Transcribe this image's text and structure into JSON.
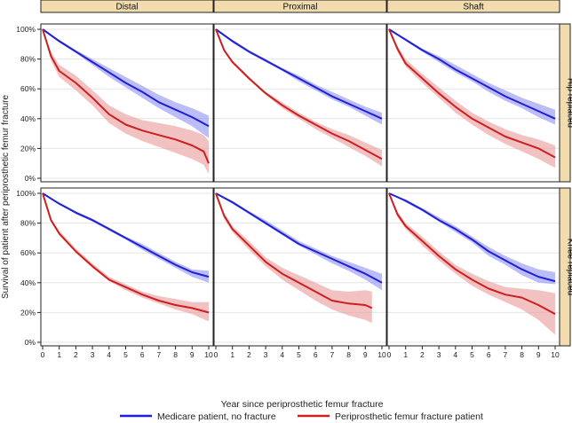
{
  "chart_data": {
    "type": "line",
    "xlabel": "Year since periprosthetic femur fracture",
    "ylabel": "Survival of patient after periprosthetic femur fracture",
    "x_ticks": [
      0,
      1,
      2,
      3,
      4,
      5,
      6,
      7,
      8,
      9,
      10
    ],
    "y_ticks": [
      "0%",
      "20%",
      "40%",
      "60%",
      "80%",
      "100%"
    ],
    "xlim": [
      0,
      10
    ],
    "ylim": [
      0,
      100
    ],
    "columns": [
      "Distal",
      "Proximal",
      "Shaft"
    ],
    "rows": [
      "Hip replaced",
      "Knee replaced"
    ],
    "legend": {
      "placement": "bottom",
      "entries": [
        {
          "label": "Medicare patient, no fracture",
          "color": "#1f1fd6"
        },
        {
          "label": "Periprosthetic femur fracture patient",
          "color": "#cc1f1f"
        }
      ]
    },
    "colors": {
      "medicare_line": "#1f1fd6",
      "medicare_band": "#8f8ff0",
      "fracture_line": "#cc1f1f",
      "fracture_band": "#ea9a9a",
      "strip": "#f2dcae"
    },
    "panels": [
      {
        "column": "Distal",
        "row": "Hip replaced",
        "series": [
          {
            "legend": 0,
            "x": [
              0,
              1,
              2,
              3,
              4,
              5,
              6,
              7,
              8,
              9,
              10
            ],
            "y": [
              100,
              92,
              85,
              78,
              71,
              64,
              58,
              51,
              46,
              41,
              35
            ],
            "lower": [
              100,
              91,
              84,
              76,
              68,
              61,
              54,
              47,
              41,
              35,
              27
            ],
            "upper": [
              100,
              93,
              86,
              80,
              74,
              68,
              62,
              56,
              51,
              47,
              42
            ]
          },
          {
            "legend": 1,
            "x": [
              0,
              0.5,
              1,
              2,
              3,
              4,
              5,
              6,
              7,
              8,
              9,
              9.7,
              10
            ],
            "y": [
              100,
              82,
              72,
              64,
              54,
              43,
              36,
              32,
              29,
              26,
              22,
              18,
              10
            ],
            "lower": [
              100,
              79,
              68,
              59,
              49,
              37,
              30,
              25,
              21,
              17,
              13,
              9,
              3
            ],
            "upper": [
              100,
              85,
              76,
              69,
              59,
              49,
              43,
              39,
              37,
              35,
              32,
              29,
              25
            ]
          }
        ]
      },
      {
        "column": "Proximal",
        "row": "Hip replaced",
        "series": [
          {
            "legend": 0,
            "x": [
              0,
              1,
              2,
              3,
              4,
              5,
              6,
              7,
              8,
              9,
              10
            ],
            "y": [
              100,
              92,
              85,
              79,
              73,
              67,
              61,
              55,
              50,
              45,
              40
            ],
            "lower": [
              100,
              91,
              84,
              78,
              72,
              65,
              59,
              53,
              48,
              42,
              36
            ],
            "upper": [
              100,
              93,
              86,
              80,
              74,
              69,
              63,
              58,
              53,
              48,
              44
            ]
          },
          {
            "legend": 1,
            "x": [
              0,
              0.5,
              1,
              2,
              3,
              4,
              5,
              6,
              7,
              8,
              9,
              10
            ],
            "y": [
              100,
              86,
              78,
              67,
              57,
              49,
              42,
              36,
              30,
              25,
              19,
              13
            ],
            "lower": [
              100,
              85,
              77,
              66,
              56,
              47,
              40,
              33,
              27,
              21,
              15,
              8
            ],
            "upper": [
              100,
              87,
              79,
              68,
              58,
              51,
              44,
              38,
              33,
              29,
              24,
              19
            ]
          }
        ]
      },
      {
        "column": "Shaft",
        "row": "Hip replaced",
        "series": [
          {
            "legend": 0,
            "x": [
              0,
              1,
              2,
              3,
              4,
              5,
              6,
              7,
              8,
              9,
              10
            ],
            "y": [
              100,
              93,
              86,
              80,
              73,
              67,
              61,
              55,
              50,
              45,
              40
            ],
            "lower": [
              100,
              92,
              85,
              78,
              71,
              65,
              58,
              52,
              47,
              41,
              36
            ],
            "upper": [
              100,
              94,
              87,
              82,
              76,
              70,
              64,
              59,
              54,
              50,
              46
            ]
          },
          {
            "legend": 1,
            "x": [
              0,
              0.5,
              1,
              2,
              3,
              4,
              5,
              6,
              7,
              8,
              9,
              10
            ],
            "y": [
              100,
              87,
              77,
              67,
              57,
              48,
              40,
              34,
              28,
              24,
              20,
              14
            ],
            "lower": [
              100,
              85,
              75,
              64,
              54,
              44,
              36,
              29,
              23,
              18,
              13,
              7
            ],
            "upper": [
              100,
              89,
              80,
              70,
              61,
              52,
              44,
              38,
              33,
              29,
              26,
              22
            ]
          }
        ]
      },
      {
        "column": "Distal",
        "row": "Knee replaced",
        "series": [
          {
            "legend": 0,
            "x": [
              0,
              1,
              2,
              3,
              4,
              5,
              6,
              7,
              8,
              9,
              10
            ],
            "y": [
              100,
              93,
              87,
              82,
              76,
              70,
              64,
              58,
              52,
              47,
              44
            ],
            "lower": [
              100,
              93,
              86,
              81,
              75,
              69,
              62,
              56,
              50,
              44,
              40
            ],
            "upper": [
              100,
              94,
              88,
              83,
              77,
              71,
              66,
              60,
              54,
              49,
              48
            ]
          },
          {
            "legend": 1,
            "x": [
              0,
              0.5,
              1,
              2,
              3,
              4,
              5,
              6,
              7,
              8,
              9,
              10
            ],
            "y": [
              100,
              82,
              73,
              61,
              51,
              42,
              37,
              32,
              28,
              25,
              23,
              20
            ],
            "lower": [
              100,
              81,
              72,
              60,
              50,
              41,
              35,
              30,
              26,
              22,
              19,
              14
            ],
            "upper": [
              100,
              83,
              75,
              63,
              53,
              44,
              39,
              34,
              31,
              29,
              27,
              27
            ]
          }
        ]
      },
      {
        "column": "Proximal",
        "row": "Knee replaced",
        "series": [
          {
            "legend": 0,
            "x": [
              0,
              1,
              2,
              3,
              4,
              5,
              6,
              7,
              8,
              9,
              10
            ],
            "y": [
              100,
              94,
              87,
              80,
              73,
              66,
              61,
              56,
              51,
              46,
              40
            ],
            "lower": [
              100,
              93,
              86,
              79,
              72,
              65,
              59,
              53,
              48,
              42,
              35
            ],
            "upper": [
              100,
              95,
              88,
              82,
              75,
              68,
              63,
              58,
              54,
              50,
              46
            ]
          },
          {
            "legend": 1,
            "x": [
              0,
              0.5,
              1,
              2,
              3,
              4,
              5,
              6,
              7,
              8,
              9,
              9.4
            ],
            "y": [
              100,
              85,
              76,
              65,
              54,
              46,
              40,
              34,
              28,
              26,
              25,
              23
            ],
            "lower": [
              100,
              83,
              74,
              62,
              51,
              42,
              35,
              28,
              22,
              18,
              15,
              13
            ],
            "upper": [
              100,
              87,
              78,
              68,
              57,
              50,
              45,
              40,
              35,
              34,
              35,
              34
            ]
          }
        ]
      },
      {
        "column": "Shaft",
        "row": "Knee replaced",
        "series": [
          {
            "legend": 0,
            "x": [
              0,
              1,
              2,
              3,
              4,
              5,
              6,
              7,
              8,
              9,
              10
            ],
            "y": [
              100,
              95,
              89,
              82,
              76,
              69,
              61,
              55,
              49,
              44,
              41
            ],
            "lower": [
              100,
              94,
              88,
              81,
              74,
              67,
              58,
              52,
              45,
              40,
              39
            ],
            "upper": [
              100,
              96,
              90,
              84,
              78,
              71,
              64,
              58,
              53,
              49,
              47
            ]
          },
          {
            "legend": 1,
            "x": [
              0,
              0.5,
              1,
              2,
              3,
              4,
              5,
              6,
              7,
              8,
              9,
              10
            ],
            "y": [
              100,
              86,
              78,
              68,
              58,
              49,
              42,
              36,
              32,
              30,
              25,
              19
            ],
            "lower": [
              100,
              84,
              76,
              65,
              55,
              46,
              38,
              32,
              27,
              22,
              15,
              5
            ],
            "upper": [
              100,
              88,
              80,
              71,
              61,
              52,
              46,
              41,
              37,
              36,
              35,
              33
            ]
          }
        ]
      }
    ]
  }
}
